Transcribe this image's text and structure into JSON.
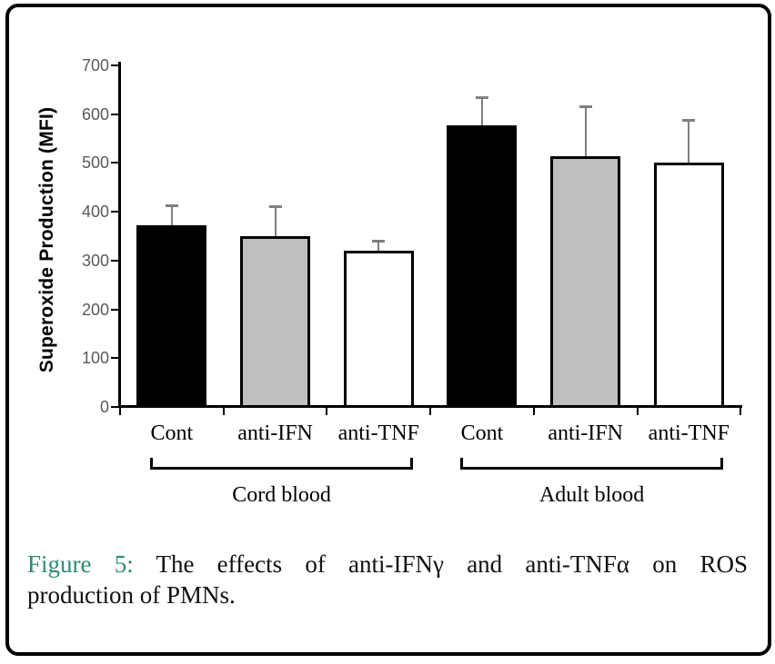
{
  "chart_data": {
    "type": "bar",
    "title": "",
    "xlabel": "",
    "ylabel": "Superoxide Production (MFI)",
    "ylim": [
      0,
      700
    ],
    "ytick_step": 100,
    "ytick_labels": [
      "0",
      "100",
      "200",
      "300",
      "400",
      "500",
      "600",
      "700"
    ],
    "grid": false,
    "legend_position": "none",
    "error_bars": "plus_only",
    "groups": [
      {
        "label": "Cord blood",
        "bars": [
          {
            "category": "Cont",
            "value": 372,
            "error_plus": 42,
            "fill": "#000000"
          },
          {
            "category": "anti-IFN",
            "value": 350,
            "error_plus": 62,
            "fill": "#bfbfbf"
          },
          {
            "category": "anti-TNF",
            "value": 320,
            "error_plus": 21,
            "fill": "#ffffff"
          }
        ]
      },
      {
        "label": "Adult blood",
        "bars": [
          {
            "category": "Cont",
            "value": 578,
            "error_plus": 57,
            "fill": "#000000"
          },
          {
            "category": "anti-IFN",
            "value": 513,
            "error_plus": 103,
            "fill": "#bfbfbf"
          },
          {
            "category": "anti-TNF",
            "value": 501,
            "error_plus": 88,
            "fill": "#ffffff"
          }
        ]
      }
    ],
    "colors": {
      "axis": "#000000",
      "tick_label": "#595959",
      "error_bar": "#7f7f7f",
      "bar_border": "#000000"
    }
  },
  "caption": {
    "label": "Figure 5:",
    "line1_rest": "The effects of anti-IFNγ and anti-TNFα on ROS",
    "line2": "production of PMNs.",
    "label_color": "#2e8b76"
  }
}
